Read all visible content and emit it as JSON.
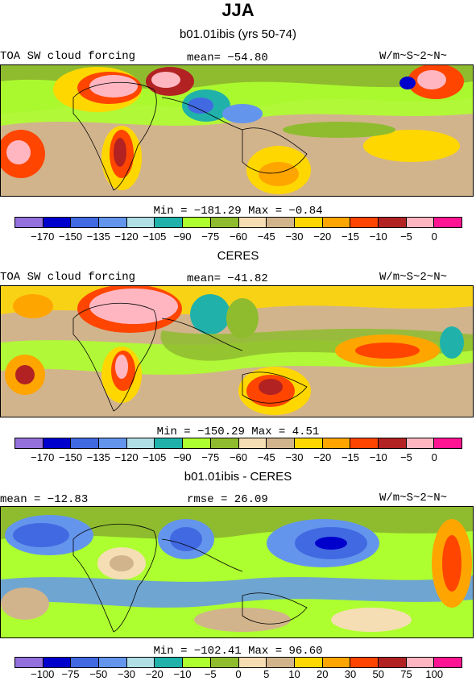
{
  "figure": {
    "season": "JJA",
    "colors": [
      "#9370db",
      "#0000cd",
      "#4169e1",
      "#6495ed",
      "#b0e0e6",
      "#20b2aa",
      "#adff2f",
      "#8fbc2f",
      "#f5deb3",
      "#d2b48c",
      "#ffd700",
      "#ffa500",
      "#ff4500",
      "#b22222",
      "#ffb6c1",
      "#ff1493"
    ]
  },
  "panels": [
    {
      "title": "b01.01ibis (yrs 50-74)",
      "left_label": "TOA SW cloud forcing",
      "center_label": "mean= −54.80",
      "units": "W/m~S~2~N~",
      "minmax": "Min = −181.29 Max =   −0.84",
      "levels": [
        "−170",
        "−150",
        "−135",
        "−120",
        "−105",
        "−90",
        "−75",
        "−60",
        "−45",
        "−30",
        "−20",
        "−15",
        "−10",
        "−5",
        "0"
      ]
    },
    {
      "title": "CERES",
      "left_label": "TOA SW cloud forcing",
      "center_label": "mean= −41.82",
      "units": "W/m~S~2~N~",
      "minmax": "Min = −150.29 Max =    4.51",
      "levels": [
        "−170",
        "−150",
        "−135",
        "−120",
        "−105",
        "−90",
        "−75",
        "−60",
        "−45",
        "−30",
        "−20",
        "−15",
        "−10",
        "−5",
        "0"
      ]
    },
    {
      "title": "b01.01ibis - CERES",
      "left_label": "mean = −12.83",
      "center_label": "rmse =  26.09",
      "units": "W/m~S~2~N~",
      "minmax": "Min = −102.41 Max =   96.60",
      "levels": [
        "−100",
        "−75",
        "−50",
        "−30",
        "−20",
        "−10",
        "−5",
        "0",
        "5",
        "10",
        "20",
        "30",
        "50",
        "75",
        "100"
      ]
    }
  ]
}
